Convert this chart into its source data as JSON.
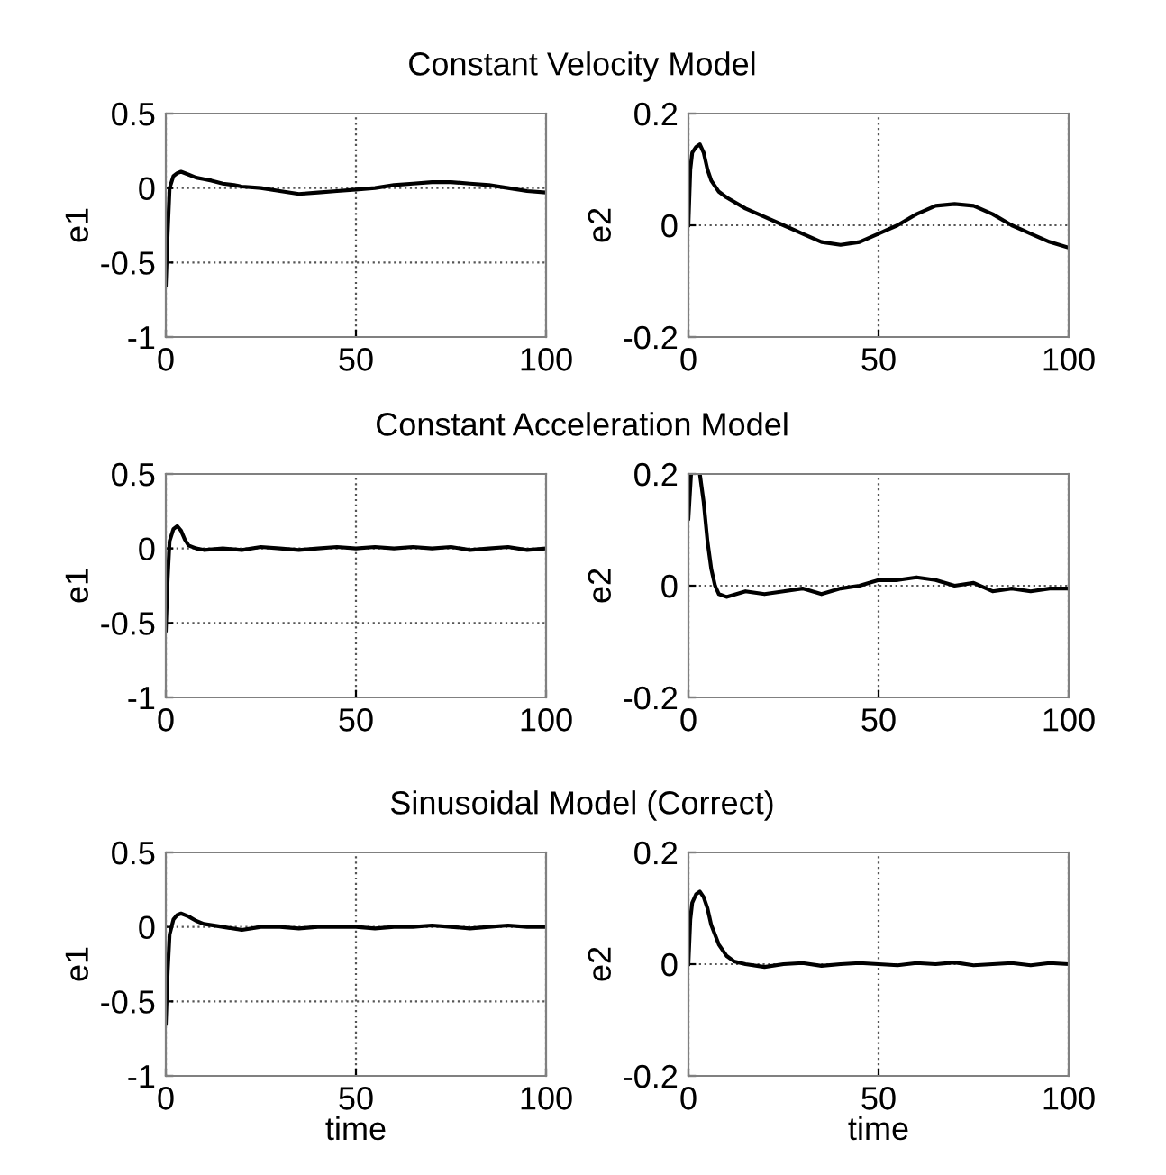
{
  "chart_data": [
    {
      "type": "line",
      "title": "Constant Velocity Model",
      "ylabel": "e1",
      "xlim": [
        0,
        100
      ],
      "xticks": [
        0,
        50,
        100
      ],
      "ylim": [
        -1,
        0.5
      ],
      "yticks": [
        -1,
        -0.5,
        0,
        0.5
      ],
      "grid": true,
      "series": [
        {
          "color": "#000000",
          "x": [
            0,
            0.5,
            1,
            2,
            3,
            4,
            6,
            8,
            10,
            12,
            15,
            18,
            20,
            25,
            30,
            35,
            40,
            45,
            50,
            55,
            60,
            65,
            70,
            75,
            80,
            85,
            90,
            95,
            100
          ],
          "values": [
            -0.65,
            -0.3,
            0,
            0.08,
            0.1,
            0.11,
            0.09,
            0.07,
            0.06,
            0.05,
            0.03,
            0.02,
            0.01,
            0,
            -0.02,
            -0.04,
            -0.03,
            -0.02,
            -0.01,
            0,
            0.02,
            0.03,
            0.04,
            0.04,
            0.03,
            0.02,
            0,
            -0.02,
            -0.03
          ]
        }
      ]
    },
    {
      "type": "line",
      "ylabel": "e2",
      "xlim": [
        0,
        100
      ],
      "xticks": [
        0,
        50,
        100
      ],
      "ylim": [
        -0.2,
        0.2
      ],
      "yticks": [
        -0.2,
        0,
        0.2
      ],
      "grid": true,
      "series": [
        {
          "color": "#000000",
          "x": [
            0,
            0.5,
            1,
            2,
            3,
            4,
            5,
            6,
            8,
            10,
            15,
            20,
            25,
            30,
            35,
            40,
            45,
            50,
            55,
            60,
            65,
            70,
            75,
            80,
            85,
            90,
            95,
            100
          ],
          "values": [
            0,
            0.1,
            0.13,
            0.14,
            0.145,
            0.13,
            0.1,
            0.08,
            0.06,
            0.05,
            0.03,
            0.015,
            0,
            -0.015,
            -0.03,
            -0.035,
            -0.03,
            -0.015,
            0,
            0.02,
            0.035,
            0.038,
            0.035,
            0.02,
            0,
            -0.015,
            -0.03,
            -0.04
          ]
        }
      ]
    },
    {
      "type": "line",
      "title": "Constant Acceleration Model",
      "ylabel": "e1",
      "xlim": [
        0,
        100
      ],
      "xticks": [
        0,
        50,
        100
      ],
      "ylim": [
        -1,
        0.5
      ],
      "yticks": [
        -1,
        -0.5,
        0,
        0.5
      ],
      "grid": true,
      "series": [
        {
          "color": "#000000",
          "x": [
            0,
            0.5,
            1,
            2,
            3,
            4,
            5,
            6,
            8,
            10,
            15,
            20,
            25,
            30,
            35,
            40,
            45,
            50,
            55,
            60,
            65,
            70,
            75,
            80,
            85,
            90,
            95,
            100
          ],
          "values": [
            -0.55,
            -0.2,
            0.05,
            0.13,
            0.15,
            0.12,
            0.06,
            0.02,
            0,
            -0.01,
            0,
            -0.01,
            0.01,
            0,
            -0.01,
            0,
            0.01,
            0,
            0.01,
            0,
            0.01,
            0,
            0.01,
            -0.01,
            0,
            0.01,
            -0.01,
            0
          ]
        }
      ]
    },
    {
      "type": "line",
      "ylabel": "e2",
      "xlim": [
        0,
        100
      ],
      "xticks": [
        0,
        50,
        100
      ],
      "ylim": [
        -0.2,
        0.2
      ],
      "yticks": [
        -0.2,
        0,
        0.2
      ],
      "grid": true,
      "series": [
        {
          "color": "#000000",
          "x": [
            0,
            0.7,
            1.5,
            3,
            4,
            5,
            6,
            7,
            8,
            10,
            15,
            20,
            25,
            30,
            35,
            40,
            45,
            50,
            55,
            60,
            65,
            70,
            75,
            80,
            85,
            90,
            95,
            100
          ],
          "values": [
            0.12,
            0.2,
            null,
            0.2,
            0.15,
            0.08,
            0.03,
            0,
            -0.015,
            -0.02,
            -0.01,
            -0.015,
            -0.01,
            -0.005,
            -0.015,
            -0.005,
            0,
            0.01,
            0.01,
            0.015,
            0.01,
            0,
            0.005,
            -0.01,
            -0.005,
            -0.01,
            -0.005,
            -0.005
          ]
        }
      ]
    },
    {
      "type": "line",
      "title": "Sinusoidal Model (Correct)",
      "xlabel": "time",
      "ylabel": "e1",
      "xlim": [
        0,
        100
      ],
      "xticks": [
        0,
        50,
        100
      ],
      "ylim": [
        -1,
        0.5
      ],
      "yticks": [
        -1,
        -0.5,
        0,
        0.5
      ],
      "grid": true,
      "series": [
        {
          "color": "#000000",
          "x": [
            0,
            0.5,
            1,
            2,
            3,
            4,
            6,
            8,
            10,
            15,
            20,
            25,
            30,
            35,
            40,
            45,
            50,
            55,
            60,
            65,
            70,
            75,
            80,
            85,
            90,
            95,
            100
          ],
          "values": [
            -0.65,
            -0.3,
            -0.05,
            0.05,
            0.08,
            0.09,
            0.07,
            0.04,
            0.02,
            0,
            -0.02,
            0,
            0,
            -0.01,
            0,
            0,
            0,
            -0.01,
            0,
            0,
            0.01,
            0,
            -0.01,
            0,
            0.01,
            0,
            0
          ]
        }
      ]
    },
    {
      "type": "line",
      "xlabel": "time",
      "ylabel": "e2",
      "xlim": [
        0,
        100
      ],
      "xticks": [
        0,
        50,
        100
      ],
      "ylim": [
        -0.2,
        0.2
      ],
      "yticks": [
        -0.2,
        0,
        0.2
      ],
      "grid": true,
      "series": [
        {
          "color": "#000000",
          "x": [
            0,
            0.5,
            1,
            2,
            3,
            4,
            5,
            6,
            8,
            10,
            12,
            15,
            20,
            25,
            30,
            35,
            40,
            45,
            50,
            55,
            60,
            65,
            70,
            75,
            80,
            85,
            90,
            95,
            100
          ],
          "values": [
            0,
            0.08,
            0.11,
            0.125,
            0.13,
            0.12,
            0.1,
            0.07,
            0.035,
            0.015,
            0.005,
            0,
            -0.005,
            0,
            0.002,
            -0.003,
            0,
            0.002,
            0,
            -0.002,
            0.002,
            0,
            0.003,
            -0.002,
            0,
            0.002,
            -0.002,
            0.002,
            0
          ]
        }
      ]
    }
  ]
}
